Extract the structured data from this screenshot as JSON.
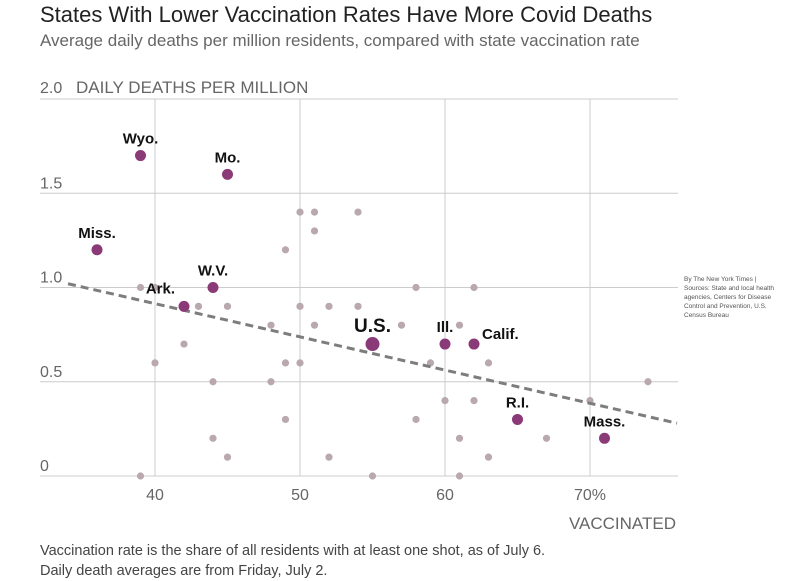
{
  "title": "States With Lower Vaccination Rates Have More Covid Deaths",
  "subtitle": "Average daily deaths per million residents, compared with state vaccination rate",
  "credit": "By The New York Times | Sources: State and local health agencies, Centers for Disease Control and Prevention, U.S. Census Bureau",
  "footnote": {
    "line1": "Vaccination rate is the share of all residents with at least one shot, as of July 6.",
    "line2": "Daily death averages are from Friday, July 2."
  },
  "colors": {
    "highlight": "#8b3a78",
    "other": "#b9a8ae",
    "trend": "#7d7d7d",
    "grid": "#cccccc"
  },
  "chart_data": {
    "type": "scatter",
    "title": "States With Lower Vaccination Rates Have More Covid Deaths",
    "subtitle": "Average daily deaths per million residents, compared with state vaccination rate",
    "xlabel": "VACCINATED",
    "ylabel": "DAILY DEATHS PER MILLION",
    "xlim": [
      34,
      76
    ],
    "ylim": [
      0,
      2.0
    ],
    "x_ticks": [
      {
        "value": 40,
        "label": "40"
      },
      {
        "value": 50,
        "label": "50"
      },
      {
        "value": 60,
        "label": "60"
      },
      {
        "value": 70,
        "label": "70%"
      }
    ],
    "y_ticks": [
      {
        "value": 0,
        "label": "0"
      },
      {
        "value": 0.5,
        "label": "0.5"
      },
      {
        "value": 1.0,
        "label": "1.0"
      },
      {
        "value": 1.5,
        "label": "1.5"
      },
      {
        "value": 2.0,
        "label": "2.0"
      }
    ],
    "grid": true,
    "trendline": {
      "x": [
        34,
        76
      ],
      "y": [
        1.02,
        0.28
      ]
    },
    "labeled_points": [
      {
        "label": "Wyo.",
        "x": 39,
        "y": 1.7
      },
      {
        "label": "Mo.",
        "x": 45,
        "y": 1.6
      },
      {
        "label": "Miss.",
        "x": 36,
        "y": 1.2
      },
      {
        "label": "W.V.",
        "x": 44,
        "y": 1.0
      },
      {
        "label": "Ark.",
        "x": 42,
        "y": 0.9
      },
      {
        "label": "U.S.",
        "x": 55,
        "y": 0.7
      },
      {
        "label": "Ill.",
        "x": 60,
        "y": 0.7
      },
      {
        "label": "Calif.",
        "x": 62,
        "y": 0.7
      },
      {
        "label": "R.I.",
        "x": 65,
        "y": 0.3
      },
      {
        "label": "Mass.",
        "x": 71,
        "y": 0.2
      }
    ],
    "other_points": [
      {
        "x": 39,
        "y": 1.0
      },
      {
        "x": 40,
        "y": 1.0
      },
      {
        "x": 43,
        "y": 0.9
      },
      {
        "x": 45,
        "y": 0.9
      },
      {
        "x": 42,
        "y": 0.7
      },
      {
        "x": 40,
        "y": 0.6
      },
      {
        "x": 44,
        "y": 0.5
      },
      {
        "x": 44,
        "y": 0.2
      },
      {
        "x": 45,
        "y": 0.1
      },
      {
        "x": 39,
        "y": 0.0
      },
      {
        "x": 49,
        "y": 1.2
      },
      {
        "x": 50,
        "y": 1.4
      },
      {
        "x": 51,
        "y": 1.4
      },
      {
        "x": 51,
        "y": 1.3
      },
      {
        "x": 54,
        "y": 1.4
      },
      {
        "x": 50,
        "y": 0.9
      },
      {
        "x": 52,
        "y": 0.9
      },
      {
        "x": 54,
        "y": 0.9
      },
      {
        "x": 48,
        "y": 0.8
      },
      {
        "x": 51,
        "y": 0.8
      },
      {
        "x": 49,
        "y": 0.6
      },
      {
        "x": 50,
        "y": 0.6
      },
      {
        "x": 48,
        "y": 0.5
      },
      {
        "x": 49,
        "y": 0.3
      },
      {
        "x": 52,
        "y": 0.1
      },
      {
        "x": 55,
        "y": 0.0
      },
      {
        "x": 57,
        "y": 0.8
      },
      {
        "x": 58,
        "y": 1.0
      },
      {
        "x": 62,
        "y": 1.0
      },
      {
        "x": 61,
        "y": 0.8
      },
      {
        "x": 59,
        "y": 0.6
      },
      {
        "x": 63,
        "y": 0.6
      },
      {
        "x": 60,
        "y": 0.4
      },
      {
        "x": 62,
        "y": 0.4
      },
      {
        "x": 58,
        "y": 0.3
      },
      {
        "x": 61,
        "y": 0.2
      },
      {
        "x": 63,
        "y": 0.1
      },
      {
        "x": 61,
        "y": 0.0
      },
      {
        "x": 67,
        "y": 0.2
      },
      {
        "x": 70,
        "y": 0.4
      },
      {
        "x": 74,
        "y": 0.5
      }
    ]
  }
}
